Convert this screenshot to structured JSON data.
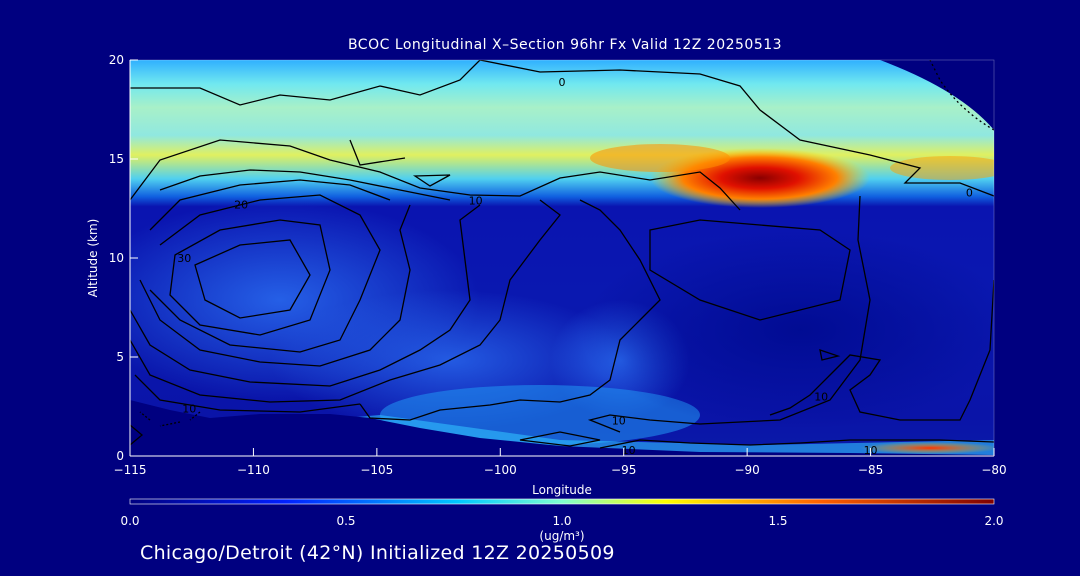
{
  "chart_data": {
    "type": "heatmap",
    "title": "BCOC Longitudinal X–Section 96hr  Fx Valid 12Z 20250513",
    "xlabel": "Longitude",
    "ylabel": "Altitude (km)",
    "xlim": [
      -115,
      -80
    ],
    "ylim": [
      0,
      20
    ],
    "x_ticks": [
      -115,
      -110,
      -105,
      -100,
      -95,
      -90,
      -85,
      -80
    ],
    "x_tick_labels": [
      "−115",
      "−110",
      "−105",
      "−100",
      "−95",
      "−90",
      "−85",
      "−80"
    ],
    "y_ticks": [
      0,
      5,
      10,
      15,
      20
    ],
    "y_tick_labels": [
      "0",
      "5",
      "10",
      "15",
      "20"
    ],
    "colorbar": {
      "min": 0.0,
      "max": 2.0,
      "ticks": [
        "0.0",
        "0.5",
        "1.0",
        "1.5",
        "2.0"
      ],
      "unit_label": "(ug/m³)"
    },
    "contour_labels": [
      {
        "lon": -97.5,
        "alt": 18.9,
        "text": "0"
      },
      {
        "lon": -81.0,
        "alt": 13.3,
        "text": "0"
      },
      {
        "lon": -110.5,
        "alt": 12.7,
        "text": "20"
      },
      {
        "lon": -101.0,
        "alt": 12.9,
        "text": "10"
      },
      {
        "lon": -112.8,
        "alt": 10.0,
        "text": "30"
      },
      {
        "lon": -112.6,
        "alt": 2.4,
        "text": "10"
      },
      {
        "lon": -95.2,
        "alt": 1.8,
        "text": "10"
      },
      {
        "lon": -87.0,
        "alt": 3.0,
        "text": "10"
      },
      {
        "lon": -85.0,
        "alt": 0.3,
        "text": "10"
      },
      {
        "lon": -94.8,
        "alt": 0.3,
        "text": "10"
      }
    ],
    "hotspots": [
      {
        "lon": -89.8,
        "alt": 13.9,
        "value": 2.0
      },
      {
        "lon": -82.0,
        "alt": 0.3,
        "value": 1.9
      }
    ]
  },
  "footer": "Chicago/Detroit (42°N) Initialized 12Z 20250509",
  "colors": {
    "background": "#000080",
    "text": "#ffffff",
    "contour": "#000000"
  }
}
